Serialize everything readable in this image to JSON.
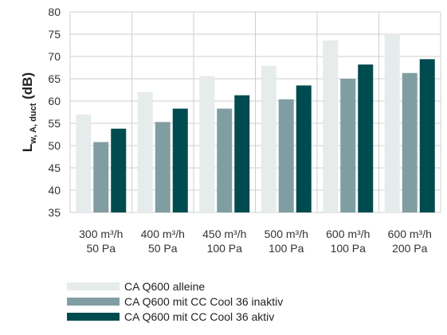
{
  "chart_data": {
    "type": "bar",
    "ylabel_main": "L",
    "ylabel_sub": "w, A, duct",
    "ylabel_unit": "(dB)",
    "ylim": [
      35,
      80
    ],
    "yticks": [
      35,
      40,
      45,
      50,
      55,
      60,
      65,
      70,
      75,
      80
    ],
    "grid": true,
    "legend_position": "bottom-left",
    "categories": [
      [
        "300 m³/h",
        "50 Pa"
      ],
      [
        "400 m³/h",
        "50 Pa"
      ],
      [
        "450 m³/h",
        "100 Pa"
      ],
      [
        "500 m³/h",
        "100 Pa"
      ],
      [
        "600 m³/h",
        "100 Pa"
      ],
      [
        "600 m³/h",
        "200 Pa"
      ]
    ],
    "series": [
      {
        "name": "CA Q600 alleine",
        "color": "#e6ebec",
        "values": [
          57,
          62,
          65.6,
          67.9,
          73.6,
          75
        ]
      },
      {
        "name": "CA Q600 mit CC Cool 36 inaktiv",
        "color": "#809ea2",
        "values": [
          50.8,
          55.3,
          58.3,
          60.4,
          65,
          66.3
        ]
      },
      {
        "name": "CA Q600 mit CC Cool 36 aktiv",
        "color": "#004b4f",
        "values": [
          53.8,
          58.3,
          61.3,
          63.5,
          68.2,
          69.4
        ]
      }
    ]
  }
}
